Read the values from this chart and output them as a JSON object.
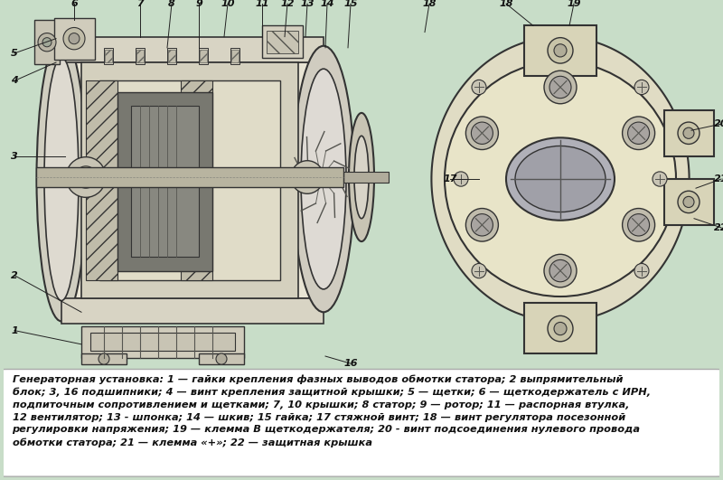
{
  "bg_color": "#c8ddc8",
  "caption_bg": "#ffffff",
  "caption_border": "#aaaaaa",
  "caption_text_line1": "Генераторная установка: 1 — гайки крепления фазных выводов обмотки статора; 2 выпрямительный",
  "caption_text_line2": "блок; 3, 16 подшипники; 4 — винт крепления защитной крышки; 5 — щетки; 6 — щеткодержатель с ИРН,",
  "caption_text_line3": "подпиточным сопротивлением и щетками; 7, 10 крышки; 8 статор; 9 — ротор; 11 — распорная втулка,",
  "caption_text_line4": "12 вентилятор; 13 - шпонка; 14 — шкив; 15 гайка; 17 стяжной винт; 18 — винт регулятора посезонной",
  "caption_text_line5": "регулировки напряжения; 19 — клемма В щеткодержателя; 20 - винт подсоединения нулевого провода",
  "caption_text_line6": "обмотки статора; 21 — клемма «+»; 22 — защитная крышка",
  "figsize": [
    8.0,
    5.31
  ],
  "dpi": 100,
  "left_body_color": "#e8e4d0",
  "left_inner_color": "#d8d4c0",
  "stator_coil_color": "#c8c4b0",
  "rotor_color": "#787870",
  "shaft_color": "#b8b4a0",
  "right_body_color": "#e8e4c0",
  "right_center_color": "#a8a8b0",
  "bolt_color": "#b0a898",
  "hatch_color": "#666660",
  "line_color": "#333333",
  "label_color": "#111111"
}
